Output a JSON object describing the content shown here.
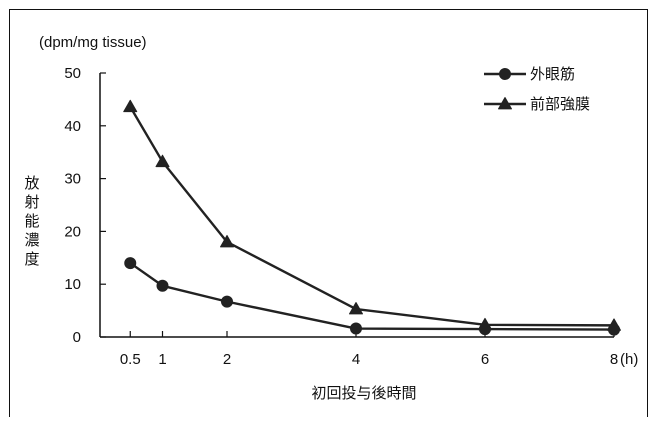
{
  "chart_data": {
    "type": "line",
    "ylabel_unit": "(dpm/mg tissue)",
    "ylabel": "放射能濃度",
    "xlabel": "初回投与後時間",
    "x_unit": "(h)",
    "x": [
      0.5,
      1,
      2,
      4,
      6,
      8
    ],
    "x_tick_labels": [
      "0.5",
      "1",
      "2",
      "4",
      "6",
      "8"
    ],
    "y_ticks": [
      0,
      10,
      20,
      30,
      40,
      50
    ],
    "y_tick_labels": [
      "0",
      "10",
      "20",
      "30",
      "40",
      "50"
    ],
    "xlim": [
      0,
      8
    ],
    "ylim": [
      0,
      50
    ],
    "grid": false,
    "legend_position": "top-right",
    "series": [
      {
        "name": "外眼筋",
        "marker": "circle",
        "values": [
          14.0,
          9.7,
          6.7,
          1.6,
          1.5,
          1.4
        ]
      },
      {
        "name": "前部強膜",
        "marker": "triangle",
        "values": [
          43.6,
          33.2,
          18.0,
          5.3,
          2.3,
          2.2
        ]
      }
    ],
    "colors": {
      "line": "#222222",
      "axis": "#111111"
    }
  }
}
